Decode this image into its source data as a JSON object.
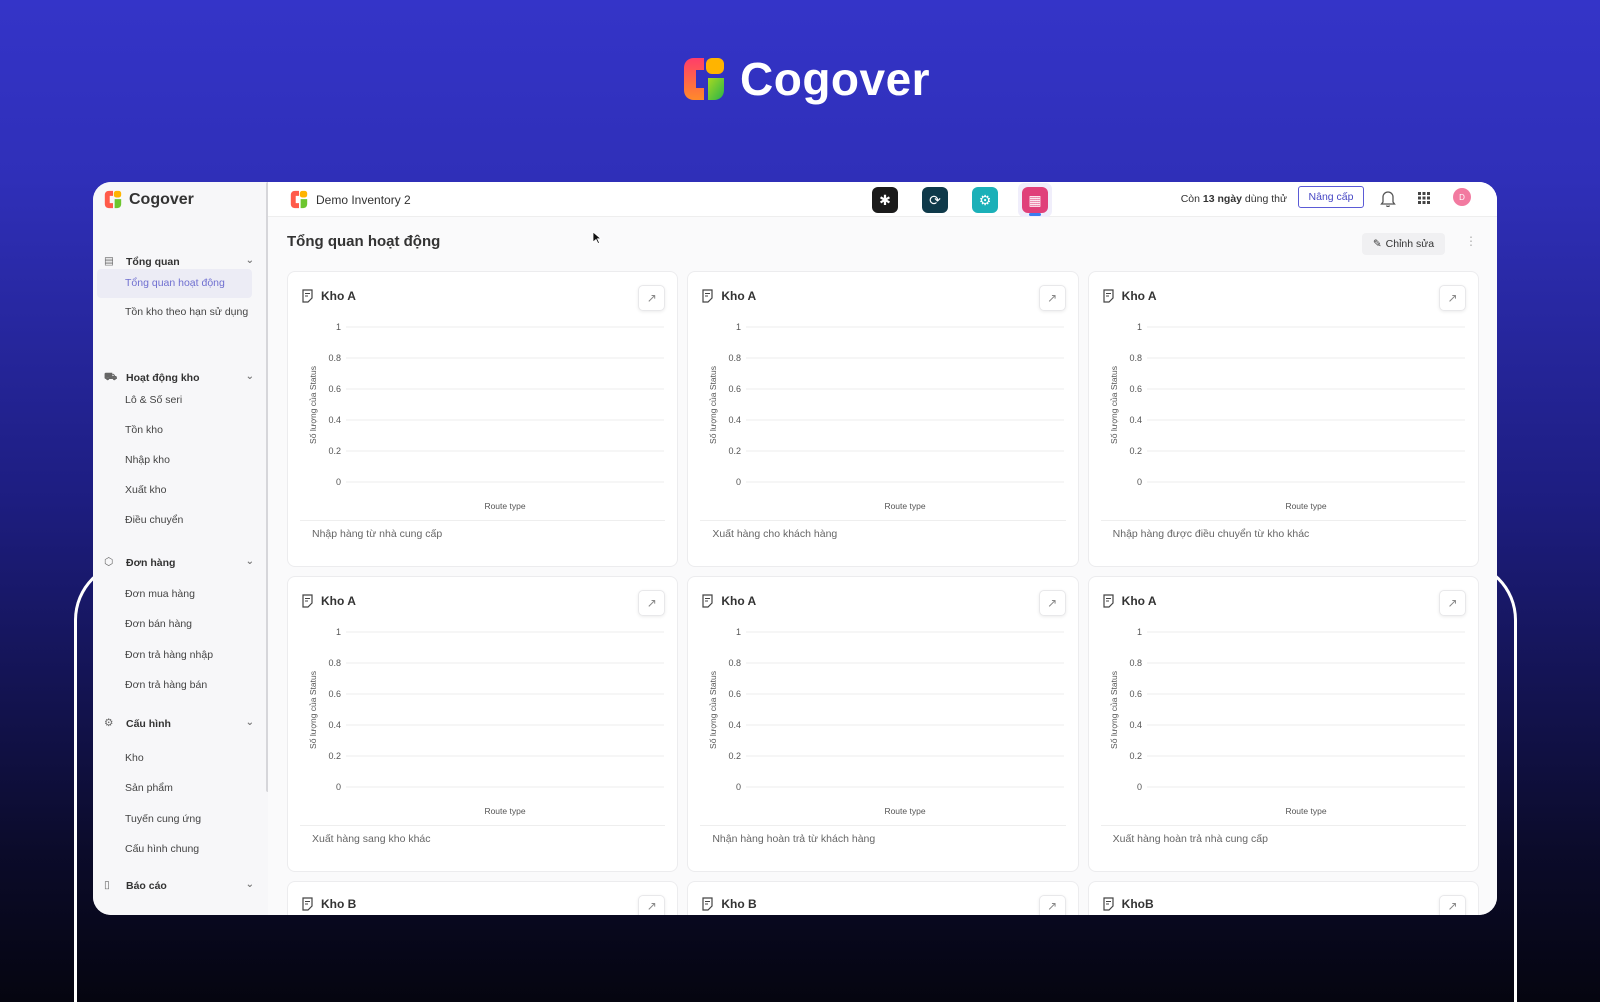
{
  "brand": {
    "name": "Cogover"
  },
  "sidebar": {
    "logo": "Cogover",
    "groups": [
      {
        "label": "Tổng quan",
        "icon": "report-icon",
        "items": [
          "Tổng quan hoạt động",
          "Tồn kho theo hạn sử dụng"
        ]
      },
      {
        "label": "Hoạt động kho",
        "icon": "truck-icon",
        "items": [
          "Lô & Số seri",
          "Tồn kho",
          "Nhập kho",
          "Xuất kho",
          "Điều chuyển"
        ]
      },
      {
        "label": "Đơn hàng",
        "icon": "box-icon",
        "items": [
          "Đơn mua hàng",
          "Đơn bán hàng",
          "Đơn trả hàng nhập",
          "Đơn trả hàng bán"
        ]
      },
      {
        "label": "Cấu hình",
        "icon": "gear-icon",
        "items": [
          "Kho",
          "Sản phẩm",
          "Tuyến cung ứng",
          "Cấu hình chung"
        ]
      },
      {
        "label": "Báo cáo",
        "icon": "report-file-icon",
        "items": []
      }
    ],
    "active_item": "Tổng quan hoạt động"
  },
  "topbar": {
    "project": "Demo Inventory 2",
    "apps": [
      {
        "icon": "people-app-icon",
        "color": "#1b1b1b"
      },
      {
        "icon": "link-app-icon",
        "color": "#0f3a4a"
      },
      {
        "icon": "settings-app-icon",
        "color": "#1bb0b8"
      },
      {
        "icon": "inventory-app-icon",
        "color": "#e0407a",
        "active": true
      }
    ],
    "trial_prefix": "Còn ",
    "trial_days": "13 ngày",
    "trial_suffix": " dùng thử",
    "upgrade": "Nâng cấp",
    "avatar": "D"
  },
  "page": {
    "title": "Tổng quan hoạt động",
    "edit": "Chỉnh sửa"
  },
  "cards": [
    {
      "title": "Kho A",
      "footer": "Nhập hàng từ nhà cung cấp"
    },
    {
      "title": "Kho A",
      "footer": "Xuất hàng cho khách hàng"
    },
    {
      "title": "Kho A",
      "footer": "Nhập hàng được điều chuyển từ kho khác"
    },
    {
      "title": "Kho A",
      "footer": "Xuất hàng sang kho khác"
    },
    {
      "title": "Kho A",
      "footer": "Nhận hàng hoàn trả từ khách hàng"
    },
    {
      "title": "Kho A",
      "footer": "Xuất hàng hoàn trả nhà cung cấp"
    },
    {
      "title": "Kho B",
      "footer": ""
    },
    {
      "title": "Kho B",
      "footer": ""
    },
    {
      "title": "KhoB",
      "footer": ""
    }
  ],
  "chart_data": {
    "type": "bar",
    "categories": [],
    "values": [],
    "xlabel": "Route type",
    "ylabel": "Số lượng của Status",
    "ylim": [
      0,
      1
    ],
    "yticks": [
      "0",
      "0.2",
      "0.4",
      "0.6",
      "0.8",
      "1"
    ],
    "grid": true
  }
}
